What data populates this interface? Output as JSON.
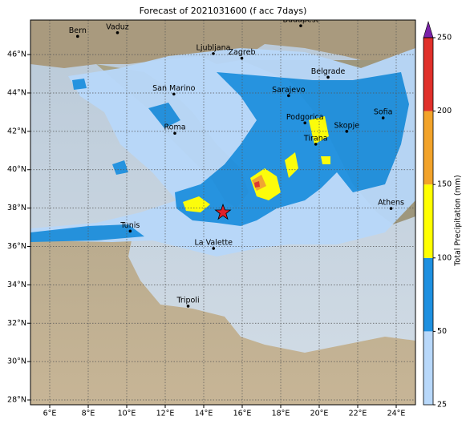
{
  "chart_data": {
    "type": "map",
    "title": "Forecast of 2021031600 (f acc 7days)",
    "xlim": [
      5,
      25
    ],
    "ylim": [
      27.75,
      47.8
    ],
    "xticks": [
      {
        "value": 6,
        "label": "6°E"
      },
      {
        "value": 8,
        "label": "8°E"
      },
      {
        "value": 10,
        "label": "10°E"
      },
      {
        "value": 12,
        "label": "12°E"
      },
      {
        "value": 14,
        "label": "14°E"
      },
      {
        "value": 16,
        "label": "16°E"
      },
      {
        "value": 18,
        "label": "18°E"
      },
      {
        "value": 20,
        "label": "20°E"
      },
      {
        "value": 22,
        "label": "22°E"
      },
      {
        "value": 24,
        "label": "24°E"
      }
    ],
    "yticks": [
      {
        "value": 28,
        "label": "28°N"
      },
      {
        "value": 30,
        "label": "30°N"
      },
      {
        "value": 32,
        "label": "32°N"
      },
      {
        "value": 34,
        "label": "34°N"
      },
      {
        "value": 36,
        "label": "36°N"
      },
      {
        "value": 38,
        "label": "38°N"
      },
      {
        "value": 40,
        "label": "40°N"
      },
      {
        "value": 42,
        "label": "42°N"
      },
      {
        "value": 44,
        "label": "44°N"
      },
      {
        "value": 46,
        "label": "46°N"
      }
    ],
    "grid": true,
    "cities": [
      {
        "name": "Bern",
        "lon": 7.45,
        "lat": 46.95
      },
      {
        "name": "Vaduz",
        "lon": 9.52,
        "lat": 47.14
      },
      {
        "name": "Budapest",
        "lon": 19.04,
        "lat": 47.5
      },
      {
        "name": "Ljubljana",
        "lon": 14.5,
        "lat": 46.05
      },
      {
        "name": "Zagreb",
        "lon": 15.98,
        "lat": 45.81
      },
      {
        "name": "Belgrade",
        "lon": 20.46,
        "lat": 44.82
      },
      {
        "name": "San Marino",
        "lon": 12.45,
        "lat": 43.94
      },
      {
        "name": "Sarajevo",
        "lon": 18.41,
        "lat": 43.86
      },
      {
        "name": "Sofia",
        "lon": 23.32,
        "lat": 42.7
      },
      {
        "name": "Podgorica",
        "lon": 19.26,
        "lat": 42.44
      },
      {
        "name": "Skopje",
        "lon": 21.43,
        "lat": 42.0
      },
      {
        "name": "Roma",
        "lon": 12.5,
        "lat": 41.9
      },
      {
        "name": "Tirana",
        "lon": 19.82,
        "lat": 41.33
      },
      {
        "name": "Athens",
        "lon": 23.73,
        "lat": 37.98
      },
      {
        "name": "Tunis",
        "lon": 10.18,
        "lat": 36.8
      },
      {
        "name": "La Valette",
        "lon": 14.51,
        "lat": 35.9
      },
      {
        "name": "Tripoli",
        "lon": 13.19,
        "lat": 32.89
      }
    ],
    "star": {
      "lon": 15.0,
      "lat": 37.77,
      "color": "#e0202a"
    },
    "colorbar": {
      "label": "Total Precipitation (mm)",
      "ticks": [
        25,
        50,
        100,
        150,
        200,
        250
      ],
      "colors": [
        "#b8d8fa",
        "#1e90e0",
        "#ffff00",
        "#f2a32a",
        "#e0302a"
      ],
      "extend_color": "#7b22a8"
    }
  }
}
